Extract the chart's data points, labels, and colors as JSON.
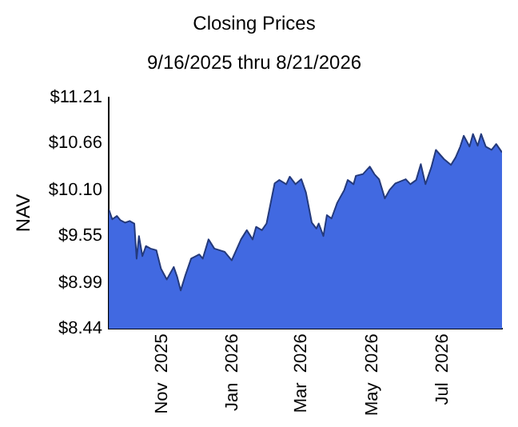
{
  "chart_data": {
    "type": "area",
    "title": "Closing Prices",
    "subtitle": "9/16/2025 thru 8/21/2026",
    "ylabel": "NAV",
    "x": [
      "2025-09-16",
      "2025-09-19",
      "2025-09-23",
      "2025-09-26",
      "2025-09-30",
      "2025-10-04",
      "2025-10-08",
      "2025-10-10",
      "2025-10-12",
      "2025-10-15",
      "2025-10-18",
      "2025-10-22",
      "2025-10-27",
      "2025-10-31",
      "2025-11-05",
      "2025-11-11",
      "2025-11-14",
      "2025-11-17",
      "2025-11-21",
      "2025-11-26",
      "2025-12-03",
      "2025-12-06",
      "2025-12-11",
      "2025-12-16",
      "2025-12-25",
      "2025-12-31",
      "2026-01-08",
      "2026-01-13",
      "2026-01-18",
      "2026-01-21",
      "2026-01-26",
      "2026-01-30",
      "2026-02-06",
      "2026-02-10",
      "2026-02-16",
      "2026-02-19",
      "2026-02-24",
      "2026-03-01",
      "2026-03-05",
      "2026-03-10",
      "2026-03-14",
      "2026-03-16",
      "2026-03-20",
      "2026-03-23",
      "2026-03-27",
      "2026-04-01",
      "2026-04-07",
      "2026-04-10",
      "2026-04-15",
      "2026-04-17",
      "2026-04-23",
      "2026-04-29",
      "2026-05-03",
      "2026-05-07",
      "2026-05-12",
      "2026-05-16",
      "2026-05-21",
      "2026-05-30",
      "2026-06-03",
      "2026-06-08",
      "2026-06-12",
      "2026-06-16",
      "2026-06-21",
      "2026-06-25",
      "2026-07-02",
      "2026-07-08",
      "2026-07-12",
      "2026-07-16",
      "2026-07-19",
      "2026-07-24",
      "2026-07-27",
      "2026-07-31",
      "2026-08-03",
      "2026-08-07",
      "2026-08-12",
      "2026-08-16",
      "2026-08-21"
    ],
    "series": [
      {
        "color": "#4169e1",
        "values": [
          9.87,
          9.75,
          9.79,
          9.74,
          9.71,
          9.73,
          9.7,
          9.28,
          9.55,
          9.31,
          9.43,
          9.4,
          9.38,
          9.16,
          9.03,
          9.18,
          9.06,
          8.9,
          9.08,
          9.28,
          9.33,
          9.28,
          9.51,
          9.4,
          9.36,
          9.26,
          9.51,
          9.62,
          9.51,
          9.66,
          9.62,
          9.7,
          10.18,
          10.22,
          10.17,
          10.26,
          10.17,
          10.23,
          10.07,
          9.71,
          9.64,
          9.7,
          9.55,
          9.8,
          9.76,
          9.95,
          10.1,
          10.22,
          10.17,
          10.27,
          10.29,
          10.38,
          10.29,
          10.23,
          10.0,
          10.1,
          10.18,
          10.23,
          10.17,
          10.22,
          10.41,
          10.17,
          10.37,
          10.58,
          10.47,
          10.4,
          10.49,
          10.62,
          10.75,
          10.62,
          10.77,
          10.63,
          10.77,
          10.62,
          10.58,
          10.65,
          10.55
        ]
      }
    ],
    "xlim": [
      "2025-09-16",
      "2026-08-21"
    ],
    "xticks": [
      {
        "value": "2025-11-01",
        "label": "Nov  2025"
      },
      {
        "value": "2026-01-01",
        "label": "Jan  2026"
      },
      {
        "value": "2026-03-01",
        "label": "Mar  2026"
      },
      {
        "value": "2026-05-01",
        "label": "May  2026"
      },
      {
        "value": "2026-07-01",
        "label": "Jul  2026"
      }
    ],
    "ylim": [
      8.44,
      11.21
    ],
    "yticks": [
      {
        "value": 8.44,
        "label": "$8.44"
      },
      {
        "value": 8.99,
        "label": "$8.99"
      },
      {
        "value": 9.55,
        "label": "$9.55"
      },
      {
        "value": 10.1,
        "label": "$10.10"
      },
      {
        "value": 10.66,
        "label": "$10.66"
      },
      {
        "value": 11.21,
        "label": "$11.21"
      }
    ],
    "grid": false,
    "legend": false
  }
}
